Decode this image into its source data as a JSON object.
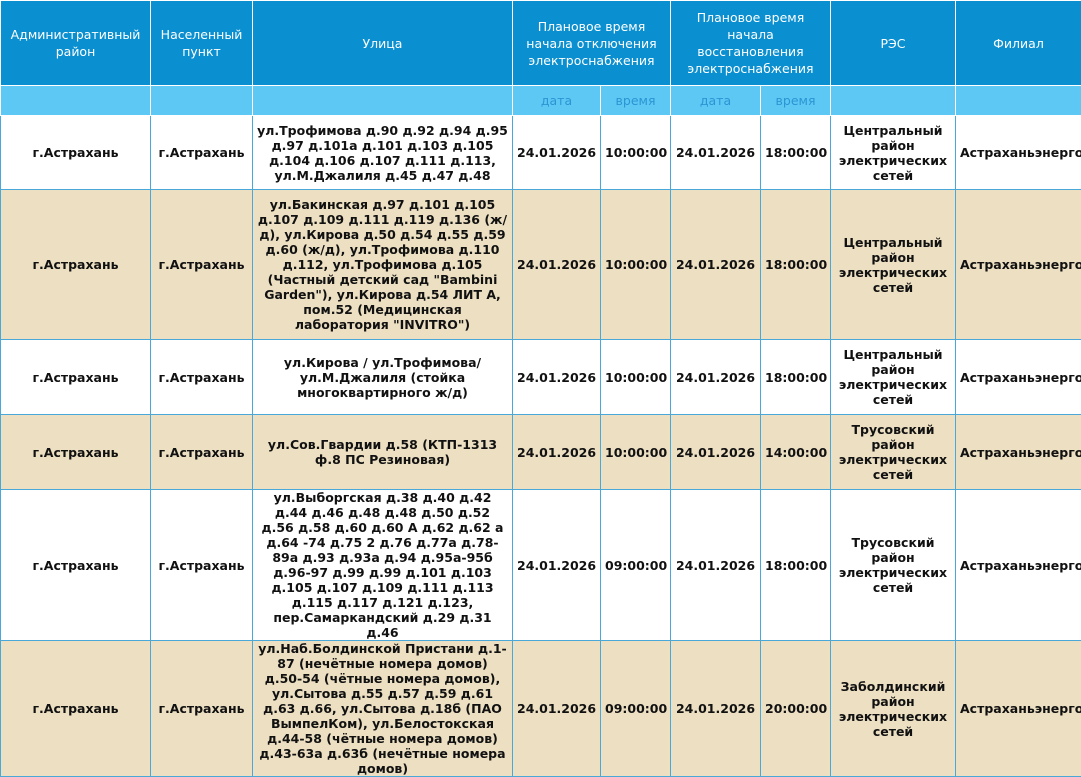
{
  "header": {
    "col_district": "Административный район",
    "col_locality": "Населенный пункт",
    "col_street": "Улица",
    "col_off": "Плановое время начала отключения электроснабжения",
    "col_on": "Плановое время начала восстановления электроснабжения",
    "col_res": "РЭС",
    "col_branch": "Филиал",
    "sub_date": "дата",
    "sub_time": "время"
  },
  "colors": {
    "header_bg": "#0a8fd0",
    "subheader_bg": "#5ec8f5",
    "alt_row_bg": "#ecdfc2"
  },
  "rows": [
    {
      "district": "г.Астрахань",
      "locality": "г.Астрахань",
      "street": "ул.Трофимова д.90 д.92 д.94 д.95 д.97 д.101а д.101 д.103 д.105 д.104 д.106 д.107 д.111 д.113, ул.М.Джалиля д.45 д.47 д.48",
      "off_date": "24.01.2026",
      "off_time": "10:00:00",
      "on_date": "24.01.2026",
      "on_time": "18:00:00",
      "res": "Центральный район электрических сетей",
      "branch": "Астраханьэнерго"
    },
    {
      "district": "г.Астрахань",
      "locality": "г.Астрахань",
      "street": "ул.Бакинская д.97 д.101 д.105 д.107 д.109 д.111 д.119 д.136 (ж/д), ул.Кирова д.50 д.54 д.55 д.59 д.60 (ж/д), ул.Трофимова д.110 д.112, ул.Трофимова д.105 (Частный детский сад \"Bambini Garden\"), ул.Кирова д.54 ЛИТ А, пом.52 (Медицинская лаборатория \"INVITRO\")",
      "off_date": "24.01.2026",
      "off_time": "10:00:00",
      "on_date": "24.01.2026",
      "on_time": "18:00:00",
      "res": "Центральный район электрических сетей",
      "branch": "Астраханьэнерго"
    },
    {
      "district": "г.Астрахань",
      "locality": "г.Астрахань",
      "street": "ул.Кирова / ул.Трофимова/ ул.М.Джалиля (стойка многоквартирного ж/д)",
      "off_date": "24.01.2026",
      "off_time": "10:00:00",
      "on_date": "24.01.2026",
      "on_time": "18:00:00",
      "res": "Центральный район электрических сетей",
      "branch": "Астраханьэнерго"
    },
    {
      "district": "г.Астрахань",
      "locality": "г.Астрахань",
      "street": "ул.Сов.Гвардии д.58 (КТП-1313 ф.8 ПС Резиновая)",
      "off_date": "24.01.2026",
      "off_time": "10:00:00",
      "on_date": "24.01.2026",
      "on_time": "14:00:00",
      "res": "Трусовский район электрических сетей",
      "branch": "Астраханьэнерго"
    },
    {
      "district": "г.Астрахань",
      "locality": "г.Астрахань",
      "street": "ул.Выборгская д.38 д.40 д.42 д.44 д.46 д.48 д.48 д.50 д.52 д.56 д.58 д.60 д.60 А д.62 д.62 а д.64 -74 д.75 2 д.76 д.77а д.78-89а д.93 д.93а д.94 д.95а-95б д.96-97 д.99 д.99 д.101 д.103 д.105 д.107 д.109 д.111 д.113 д.115 д.117 д.121 д.123, пер.Самаркандский д.29 д.31 д.46",
      "off_date": "24.01.2026",
      "off_time": "09:00:00",
      "on_date": "24.01.2026",
      "on_time": "18:00:00",
      "res": "Трусовский район электрических сетей",
      "branch": "Астраханьэнерго"
    },
    {
      "district": "г.Астрахань",
      "locality": "г.Астрахань",
      "street": "ул.Наб.Болдинской Пристани д.1-87 (нечётные номера домов) д.50-54 (чётные номера домов), ул.Сытова д.55 д.57 д.59 д.61 д.63 д.66, ул.Сытова д.18б (ПАО ВымпелКом), ул.Белостокская д.44-58 (чётные номера домов) д.43-63а д.63б (нечётные номера домов)",
      "off_date": "24.01.2026",
      "off_time": "09:00:00",
      "on_date": "24.01.2026",
      "on_time": "20:00:00",
      "res": "Заболдинский район электрических сетей",
      "branch": "Астраханьэнерго"
    }
  ]
}
